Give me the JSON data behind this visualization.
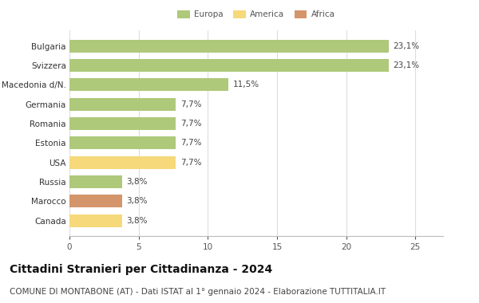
{
  "categories": [
    "Canada",
    "Marocco",
    "Russia",
    "USA",
    "Estonia",
    "Romania",
    "Germania",
    "Macedonia d/N.",
    "Svizzera",
    "Bulgaria"
  ],
  "values": [
    3.8,
    3.8,
    3.8,
    7.7,
    7.7,
    7.7,
    7.7,
    11.5,
    23.1,
    23.1
  ],
  "labels": [
    "3,8%",
    "3,8%",
    "3,8%",
    "7,7%",
    "7,7%",
    "7,7%",
    "7,7%",
    "11,5%",
    "23,1%",
    "23,1%"
  ],
  "colors": [
    "#f5d97a",
    "#d4956a",
    "#aec97a",
    "#f5d97a",
    "#aec97a",
    "#aec97a",
    "#aec97a",
    "#aec97a",
    "#aec97a",
    "#aec97a"
  ],
  "legend": [
    {
      "label": "Europa",
      "color": "#aec97a"
    },
    {
      "label": "America",
      "color": "#f5d97a"
    },
    {
      "label": "Africa",
      "color": "#d4956a"
    }
  ],
  "xlim": [
    0,
    27
  ],
  "xticks": [
    0,
    5,
    10,
    15,
    20,
    25
  ],
  "title": "Cittadini Stranieri per Cittadinanza - 2024",
  "subtitle": "COMUNE DI MONTABONE (AT) - Dati ISTAT al 1° gennaio 2024 - Elaborazione TUTTITALIA.IT",
  "title_fontsize": 10,
  "subtitle_fontsize": 7.5,
  "label_fontsize": 7.5,
  "tick_fontsize": 7.5,
  "ytick_fontsize": 7.5,
  "bar_height": 0.65,
  "background_color": "#ffffff",
  "grid_color": "#dddddd"
}
